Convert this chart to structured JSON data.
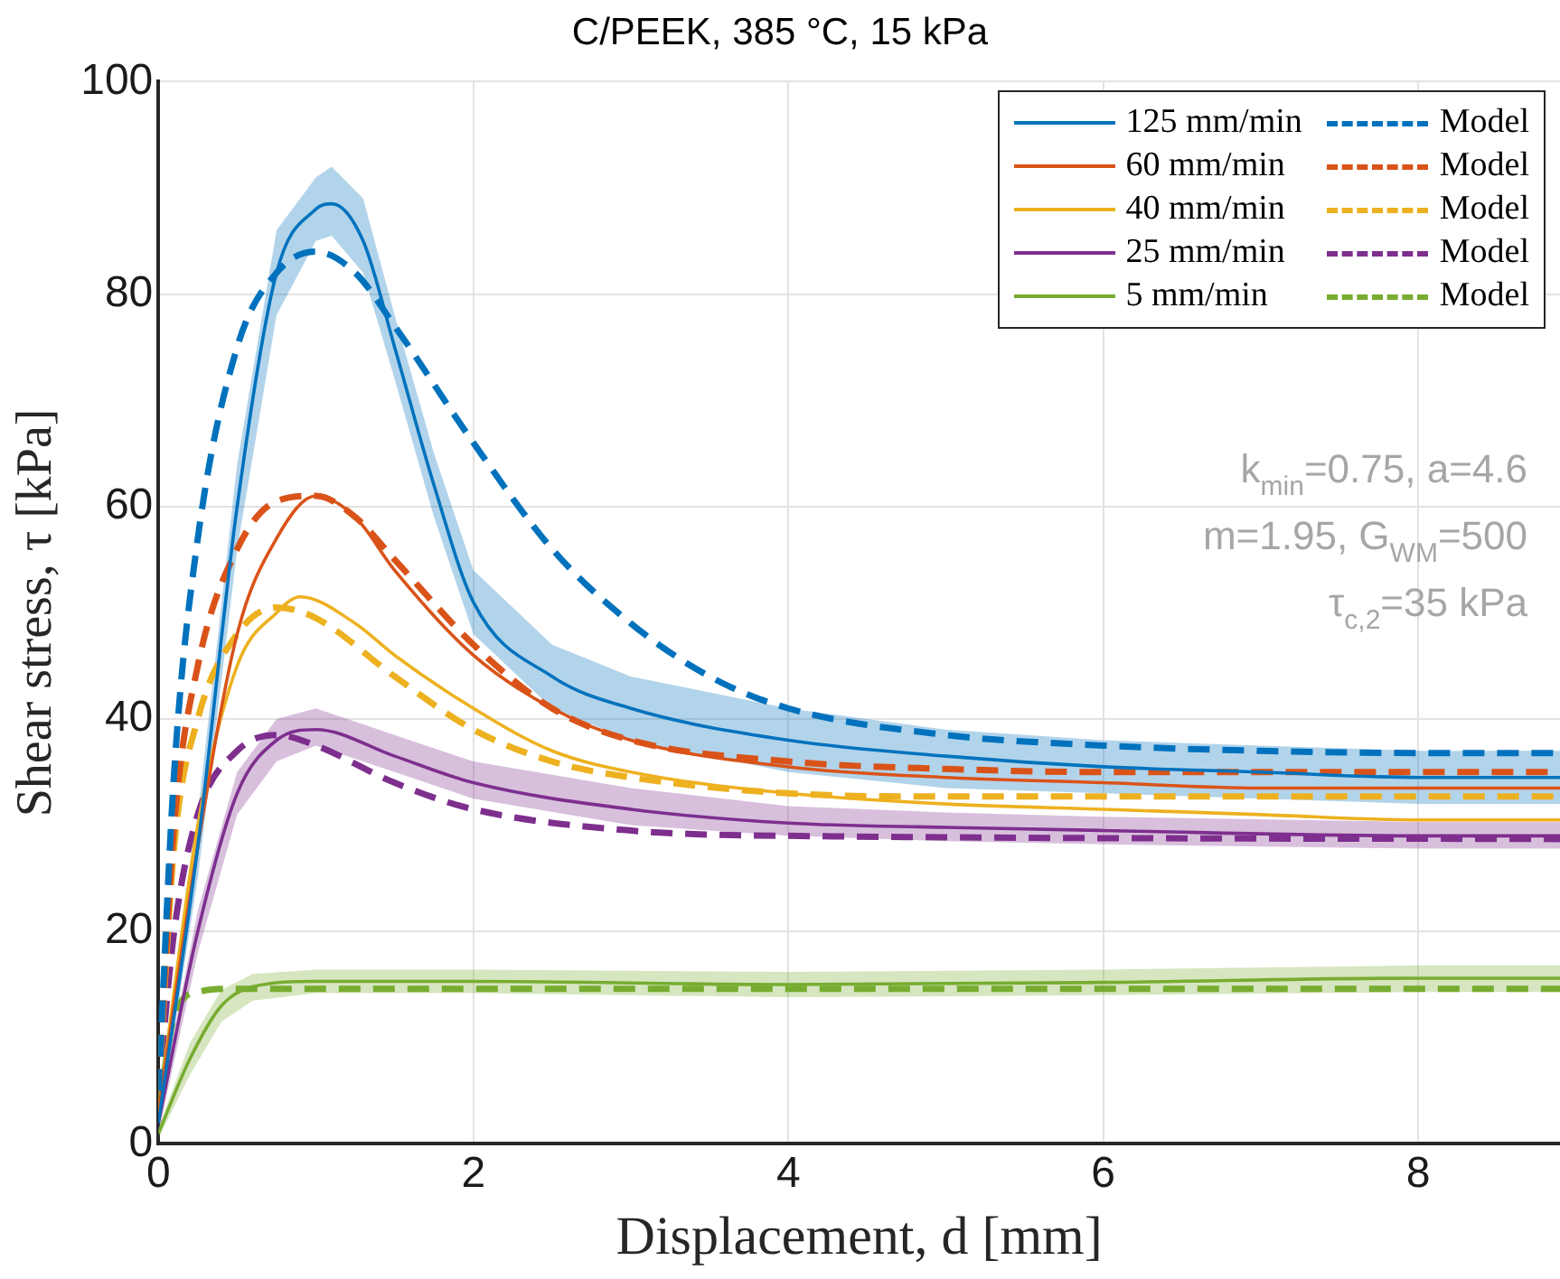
{
  "chart_data": {
    "type": "line",
    "title": "C/PEEK, 385 °C, 15 kPa",
    "xlabel": "Displacement, d [mm]",
    "ylabel": "Shear stress, τ [kPa]",
    "xlim": [
      0,
      8.9
    ],
    "xticks": [
      0,
      2,
      4,
      6,
      8
    ],
    "ylim": [
      0,
      100
    ],
    "yticks": [
      0,
      20,
      40,
      60,
      80,
      100
    ],
    "grid": true,
    "legend": "top right",
    "marker": "none",
    "annotations": [
      "k$_{min}$=0.75, a=4.6",
      "m=1.95, G$_{WM}$=500",
      "τ$_{c,2}$=35 kPa"
    ],
    "series": [
      {
        "name": "125 mm/min",
        "color": "#0072bd",
        "line_style": "solid",
        "x": [
          0,
          0.25,
          0.5,
          0.75,
          1.0,
          1.1,
          1.3,
          1.5,
          1.75,
          2,
          2.5,
          3,
          4,
          5,
          6,
          7,
          8,
          8.9
        ],
        "values": [
          2,
          28,
          60,
          82,
          88,
          88.5,
          85,
          75,
          62,
          51,
          44,
          41,
          38,
          36.5,
          35.5,
          35,
          34.5,
          34.5
        ],
        "lower": [
          1,
          25,
          56,
          78,
          85,
          85.5,
          82,
          72,
          59,
          48,
          41,
          38,
          35,
          33.5,
          33,
          32.5,
          32,
          32
        ],
        "upper": [
          3,
          31,
          64,
          86,
          91,
          92,
          89,
          78,
          65,
          54,
          47,
          44,
          41,
          39,
          38,
          37.5,
          37,
          37
        ]
      },
      {
        "name": "Model",
        "color": "#0072bd",
        "line_style": "dashed",
        "x": [
          0,
          0.1,
          0.25,
          0.5,
          0.75,
          1,
          1.25,
          1.5,
          2,
          2.5,
          3,
          3.5,
          4,
          5,
          6,
          7,
          8,
          8.9
        ],
        "values": [
          5,
          35,
          57,
          75,
          82,
          84,
          82,
          77,
          66,
          56,
          49,
          44,
          41,
          38.5,
          37.5,
          37,
          36.8,
          36.8
        ]
      },
      {
        "name": "60 mm/min",
        "color": "#d95319",
        "line_style": "solid",
        "x": [
          0,
          0.25,
          0.5,
          0.75,
          1,
          1.25,
          1.5,
          2,
          2.5,
          3,
          4,
          5,
          6,
          7,
          8,
          8.9
        ],
        "values": [
          3,
          28,
          48,
          57,
          61,
          59,
          54,
          46,
          41,
          38,
          35.5,
          34.5,
          34,
          33.5,
          33.5,
          33.5
        ]
      },
      {
        "name": "Model",
        "color": "#d95319",
        "line_style": "dashed",
        "x": [
          0,
          0.1,
          0.25,
          0.5,
          0.75,
          1,
          1.25,
          1.5,
          2,
          2.5,
          3,
          4,
          5,
          6,
          8,
          8.9
        ],
        "values": [
          5,
          30,
          45,
          56,
          60.5,
          61,
          59,
          55,
          47,
          41,
          38,
          36,
          35.3,
          35,
          35,
          35
        ]
      },
      {
        "name": "40 mm/min",
        "color": "#edb120",
        "line_style": "solid",
        "x": [
          0,
          0.25,
          0.5,
          0.75,
          0.9,
          1.25,
          1.5,
          2,
          2.5,
          3,
          4,
          5,
          6,
          7,
          8,
          8.9
        ],
        "values": [
          3,
          30,
          45,
          50,
          51.5,
          49,
          46,
          41,
          37,
          35,
          33,
          32,
          31.5,
          31,
          30.5,
          30.5
        ]
      },
      {
        "name": "Model",
        "color": "#edb120",
        "line_style": "dashed",
        "x": [
          0,
          0.1,
          0.25,
          0.5,
          0.75,
          1,
          1.5,
          2,
          2.5,
          3,
          4,
          5,
          6,
          8,
          8.9
        ],
        "values": [
          5,
          28,
          40,
          48,
          50.5,
          49.5,
          44,
          39,
          36,
          34.5,
          33,
          32.7,
          32.7,
          32.7,
          32.7
        ]
      },
      {
        "name": "25 mm/min",
        "color": "#7e2f8e",
        "line_style": "solid",
        "x": [
          0,
          0.25,
          0.5,
          0.75,
          1,
          1.5,
          2,
          3,
          4,
          5,
          6,
          8,
          8.9
        ],
        "values": [
          2,
          20,
          33,
          38,
          39,
          36.5,
          34,
          31.5,
          30.2,
          29.8,
          29.5,
          29,
          29
        ],
        "lower": [
          1,
          18,
          31,
          36,
          37.5,
          35,
          32.5,
          30,
          29,
          28.5,
          28.2,
          27.8,
          27.8
        ],
        "upper": [
          3,
          22,
          35,
          40,
          41,
          38.5,
          36,
          33.5,
          31.8,
          31.2,
          30.8,
          30.3,
          30.3
        ]
      },
      {
        "name": "Model",
        "color": "#7e2f8e",
        "line_style": "dashed",
        "x": [
          0,
          0.1,
          0.25,
          0.5,
          0.75,
          1,
          1.5,
          2,
          3,
          4,
          8.9
        ],
        "values": [
          5,
          20,
          31,
          37,
          38.5,
          37.5,
          34,
          31.5,
          29.5,
          29,
          28.7
        ]
      },
      {
        "name": "5 mm/min",
        "color": "#77ac30",
        "line_style": "solid",
        "x": [
          0,
          0.2,
          0.4,
          0.6,
          1,
          2,
          4,
          6,
          8,
          8.9
        ],
        "values": [
          1,
          8,
          13,
          14.8,
          15.3,
          15.3,
          15,
          15.2,
          15.6,
          15.6
        ],
        "lower": [
          0.5,
          6.5,
          11.5,
          13.5,
          14.2,
          14.2,
          13.8,
          14,
          14.3,
          14.3
        ],
        "upper": [
          1.5,
          9.5,
          14.5,
          16,
          16.4,
          16.4,
          16.2,
          16.4,
          16.8,
          16.8
        ]
      },
      {
        "name": "Model",
        "color": "#77ac30",
        "line_style": "dashed",
        "x": [
          0,
          0.1,
          0.25,
          0.5,
          8.9
        ],
        "values": [
          3,
          12,
          14.3,
          14.6,
          14.6
        ]
      }
    ]
  }
}
